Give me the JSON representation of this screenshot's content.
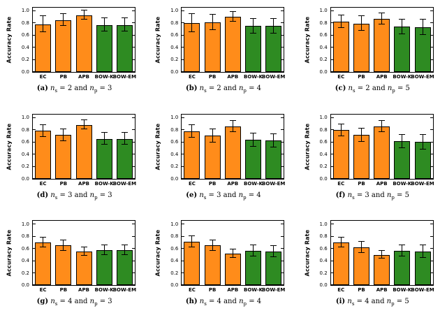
{
  "figure": {
    "background": "#ffffff"
  },
  "axis": {
    "ylabel": "Accuracy Rate",
    "ylim": [
      0,
      1.05
    ],
    "yticks": [
      "0.0",
      "0.2",
      "0.4",
      "0.6",
      "0.8",
      "1.0"
    ],
    "categories": [
      "EC",
      "PB",
      "APB",
      "BOW-K",
      "BOW-EM"
    ],
    "bar_colors": [
      "#ff8c1a",
      "#ff8c1a",
      "#ff8c1a",
      "#2e8b22",
      "#2e8b22"
    ],
    "bar_edge_color": "#000000",
    "error_bar_color": "#000000",
    "grid": "off",
    "legend": "none"
  },
  "caption_format": {
    "var": "n",
    "sub_s": "s",
    "sub_p": "p",
    "equals": "=",
    "and_word": "and"
  },
  "chart_data": [
    {
      "type": "bar",
      "caption_label": "(a)",
      "ns": "2",
      "np": "3",
      "ylabel": "Accuracy Rate",
      "ylim": [
        0,
        1.05
      ],
      "categories": [
        "EC",
        "PB",
        "APB",
        "BOW-K",
        "BOW-EM"
      ],
      "values": [
        0.78,
        0.85,
        0.93,
        0.77,
        0.77
      ],
      "errors": [
        0.13,
        0.1,
        0.07,
        0.11,
        0.11
      ]
    },
    {
      "type": "bar",
      "caption_label": "(b)",
      "ns": "2",
      "np": "4",
      "ylabel": "Accuracy Rate",
      "ylim": [
        0,
        1.05
      ],
      "categories": [
        "EC",
        "PB",
        "APB",
        "BOW-K",
        "BOW-EM"
      ],
      "values": [
        0.8,
        0.81,
        0.9,
        0.75,
        0.75
      ],
      "errors": [
        0.15,
        0.13,
        0.08,
        0.12,
        0.12
      ]
    },
    {
      "type": "bar",
      "caption_label": "(c)",
      "ns": "2",
      "np": "5",
      "ylabel": "Accuracy Rate",
      "ylim": [
        0,
        1.05
      ],
      "categories": [
        "EC",
        "PB",
        "APB",
        "BOW-K",
        "BOW-EM"
      ],
      "values": [
        0.82,
        0.79,
        0.87,
        0.74,
        0.73
      ],
      "errors": [
        0.1,
        0.12,
        0.09,
        0.12,
        0.13
      ]
    },
    {
      "type": "bar",
      "caption_label": "(d)",
      "ns": "3",
      "np": "3",
      "ylabel": "Accuracy Rate",
      "ylim": [
        0,
        1.05
      ],
      "categories": [
        "EC",
        "PB",
        "APB",
        "BOW-K",
        "BOW-EM"
      ],
      "values": [
        0.78,
        0.71,
        0.88,
        0.65,
        0.65
      ],
      "errors": [
        0.1,
        0.1,
        0.07,
        0.1,
        0.1
      ]
    },
    {
      "type": "bar",
      "caption_label": "(e)",
      "ns": "3",
      "np": "4",
      "ylabel": "Accuracy Rate",
      "ylim": [
        0,
        1.05
      ],
      "categories": [
        "EC",
        "PB",
        "APB",
        "BOW-K",
        "BOW-EM"
      ],
      "values": [
        0.77,
        0.7,
        0.85,
        0.63,
        0.62
      ],
      "errors": [
        0.1,
        0.11,
        0.09,
        0.11,
        0.11
      ]
    },
    {
      "type": "bar",
      "caption_label": "(f)",
      "ns": "3",
      "np": "5",
      "ylabel": "Accuracy Rate",
      "ylim": [
        0,
        1.05
      ],
      "categories": [
        "EC",
        "PB",
        "APB",
        "BOW-K",
        "BOW-EM"
      ],
      "values": [
        0.79,
        0.71,
        0.85,
        0.61,
        0.6
      ],
      "errors": [
        0.1,
        0.11,
        0.09,
        0.11,
        0.12
      ]
    },
    {
      "type": "bar",
      "caption_label": "(g)",
      "ns": "4",
      "np": "3",
      "ylabel": "Accuracy Rate",
      "ylim": [
        0,
        1.05
      ],
      "categories": [
        "EC",
        "PB",
        "APB",
        "BOW-K",
        "BOW-EM"
      ],
      "values": [
        0.7,
        0.65,
        0.55,
        0.57,
        0.58
      ],
      "errors": [
        0.08,
        0.09,
        0.07,
        0.08,
        0.08
      ]
    },
    {
      "type": "bar",
      "caption_label": "(h)",
      "ns": "4",
      "np": "4",
      "ylabel": "Accuracy Rate",
      "ylim": [
        0,
        1.05
      ],
      "categories": [
        "EC",
        "PB",
        "APB",
        "BOW-K",
        "BOW-EM"
      ],
      "values": [
        0.71,
        0.65,
        0.52,
        0.56,
        0.55
      ],
      "errors": [
        0.09,
        0.09,
        0.07,
        0.09,
        0.09
      ]
    },
    {
      "type": "bar",
      "caption_label": "(i)",
      "ns": "4",
      "np": "5",
      "ylabel": "Accuracy Rate",
      "ylim": [
        0,
        1.05
      ],
      "categories": [
        "EC",
        "PB",
        "APB",
        "BOW-K",
        "BOW-EM"
      ],
      "values": [
        0.7,
        0.62,
        0.5,
        0.56,
        0.55
      ],
      "errors": [
        0.08,
        0.09,
        0.06,
        0.09,
        0.1
      ]
    }
  ]
}
